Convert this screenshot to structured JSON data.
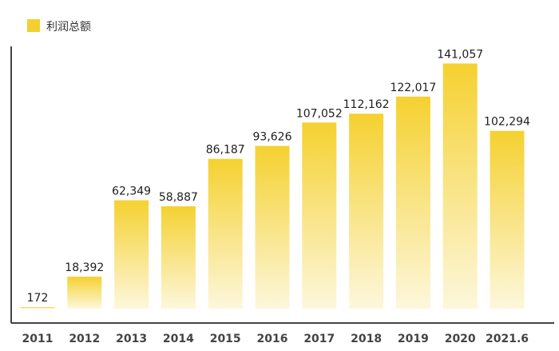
{
  "chart_data": {
    "type": "bar",
    "categories": [
      "2011",
      "2012",
      "2013",
      "2014",
      "2015",
      "2016",
      "2017",
      "2018",
      "2019",
      "2020",
      "2021.6"
    ],
    "series": [
      {
        "name": "利润总额",
        "values": [
          172,
          18392,
          62349,
          58887,
          86187,
          93626,
          107052,
          112162,
          122017,
          141057,
          102294
        ]
      }
    ],
    "value_labels": [
      "172",
      "18,392",
      "62,349",
      "58,887",
      "86,187",
      "93,626",
      "107,052",
      "112,162",
      "122,017",
      "141,057",
      "102,294"
    ],
    "title": "",
    "xlabel": "",
    "ylabel": "",
    "ylim": [
      0,
      150000
    ],
    "grid": false,
    "legend_position": "top-left",
    "colors": {
      "bar_top": "#f5d130",
      "bar_bottom": "#fdf7dc",
      "legend_swatch": "#f3cf33",
      "axis": "#444444"
    }
  }
}
